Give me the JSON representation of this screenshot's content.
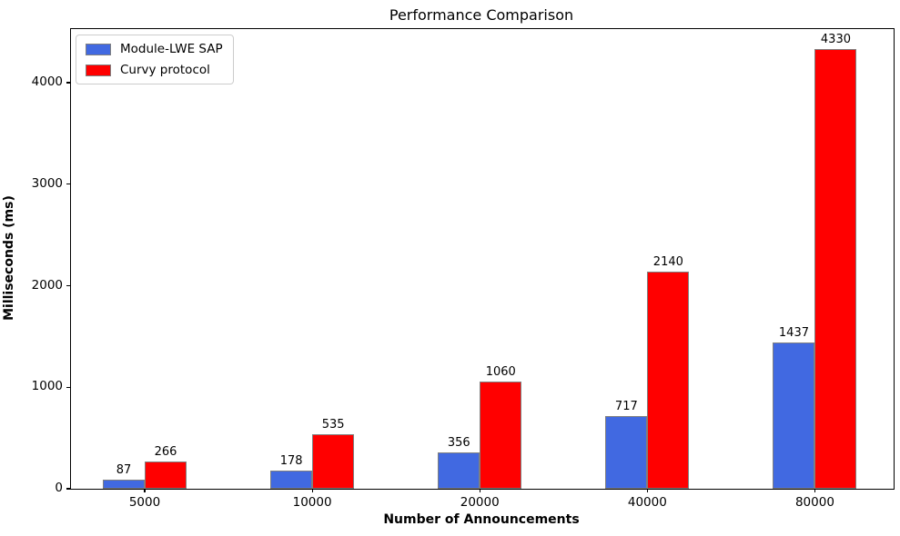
{
  "chart_data": {
    "type": "bar",
    "title": "Performance Comparison",
    "xlabel": "Number of Announcements",
    "ylabel": "Milliseconds (ms)",
    "categories": [
      "5000",
      "10000",
      "20000",
      "40000",
      "80000"
    ],
    "series": [
      {
        "name": "Module-LWE SAP",
        "color": "#4169e1",
        "values": [
          87,
          178,
          356,
          717,
          1437
        ]
      },
      {
        "name": "Curvy protocol",
        "color": "#ff0000",
        "values": [
          266,
          535,
          1060,
          2140,
          4330
        ]
      }
    ],
    "yticks": [
      0,
      1000,
      2000,
      3000,
      4000
    ],
    "ylim": [
      0,
      4528
    ],
    "xlim": [
      -0.44,
      4.47
    ],
    "bar_width_units": 0.25,
    "bar_edge_color": "#7f7f7f",
    "value_labels_shown": true,
    "legend_position": "upper left",
    "grid": false
  }
}
